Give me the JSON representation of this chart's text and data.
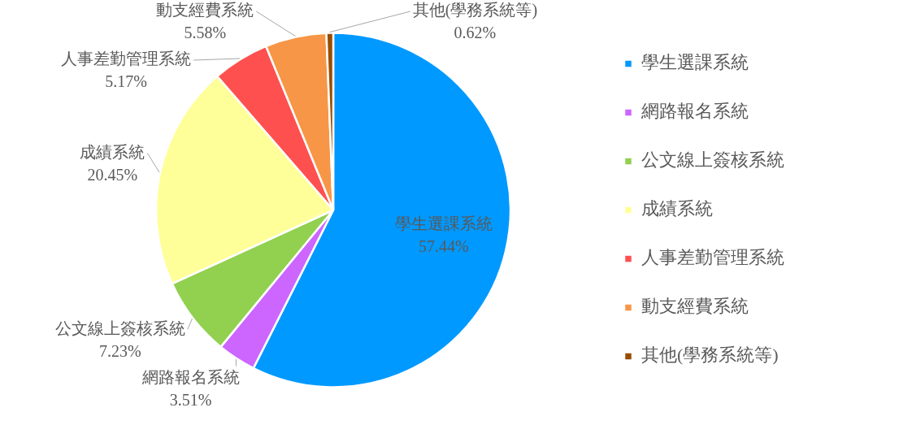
{
  "chart_data": {
    "type": "pie",
    "categories": [
      "學生選課系統",
      "網路報名系統",
      "公文線上簽核系統",
      "成績系統",
      "人事差勤管理系統",
      "動支經費系統",
      "其他(學務系統等)"
    ],
    "values": [
      57.44,
      3.51,
      7.23,
      20.45,
      5.17,
      5.58,
      0.62
    ],
    "colors": [
      "#0099ff",
      "#cc66ff",
      "#92d050",
      "#ffff99",
      "#ff5050",
      "#f79646",
      "#994c00"
    ],
    "value_labels": [
      "57.44%",
      "3.51%",
      "7.23%",
      "20.45%",
      "5.17%",
      "5.58%",
      "0.62%"
    ],
    "legend": "right"
  }
}
